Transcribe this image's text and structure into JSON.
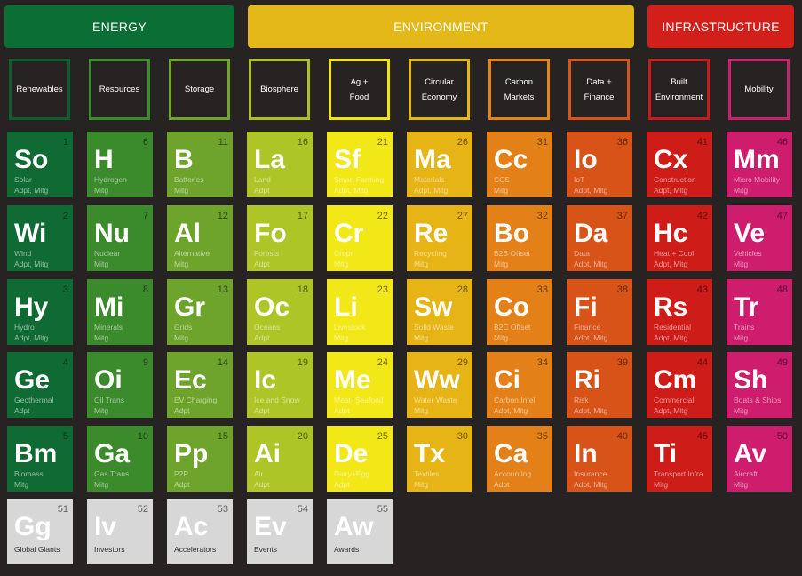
{
  "groups": [
    {
      "label": "ENERGY",
      "color": "#0a6e35"
    },
    {
      "label": "ENVIRONMENT",
      "color": "#e5b81a"
    },
    {
      "label": "INFRASTRUCTURE",
      "color": "#d31f1a"
    }
  ],
  "categories": [
    {
      "label": "Renewables",
      "border": "#0d5e2c"
    },
    {
      "label": "Resources",
      "border": "#3a8e2a"
    },
    {
      "label": "Storage",
      "border": "#6ea62b"
    },
    {
      "label": "Biosphere",
      "border": "#a9c224"
    },
    {
      "label": "Ag +\nFood",
      "border": "#f2e313"
    },
    {
      "label": "Circular\nEconomy",
      "border": "#e5b81a"
    },
    {
      "label": "Carbon\nMarkets",
      "border": "#e38318"
    },
    {
      "label": "Data +\nFinance",
      "border": "#d65518"
    },
    {
      "label": "Built\nEnvironment",
      "border": "#c81b1b"
    },
    {
      "label": "Mobility",
      "border": "#c8226c"
    }
  ],
  "column_colors": [
    "#0f6b33",
    "#3b8b2c",
    "#6ea42c",
    "#adc526",
    "#f2e817",
    "#e7b416",
    "#e38017",
    "#d85318",
    "#ce1c18",
    "#cd1d6c"
  ],
  "tiles": [
    [
      {
        "num": "1",
        "sym": "So",
        "name": "Solar",
        "tag": "Adpt, Mitg"
      },
      {
        "num": "2",
        "sym": "Wi",
        "name": "Wind",
        "tag": "Adpt, Mitg"
      },
      {
        "num": "3",
        "sym": "Hy",
        "name": "Hydro",
        "tag": "Adpt, Mitg"
      },
      {
        "num": "4",
        "sym": "Ge",
        "name": "Geothermal",
        "tag": "Adpt"
      },
      {
        "num": "5",
        "sym": "Bm",
        "name": "Biomass",
        "tag": "Mitg"
      }
    ],
    [
      {
        "num": "6",
        "sym": "H",
        "name": "Hydrogen",
        "tag": "Mitg"
      },
      {
        "num": "7",
        "sym": "Nu",
        "name": "Nuclear",
        "tag": "Mitg"
      },
      {
        "num": "8",
        "sym": "Mi",
        "name": "Minerals",
        "tag": "Mitg"
      },
      {
        "num": "9",
        "sym": "Oi",
        "name": "Oil Trans",
        "tag": "Mitg"
      },
      {
        "num": "10",
        "sym": "Ga",
        "name": "Gas Trans",
        "tag": "Mitg"
      }
    ],
    [
      {
        "num": "11",
        "sym": "B",
        "name": "Batteries",
        "tag": "Mitg"
      },
      {
        "num": "12",
        "sym": "Al",
        "name": "Alternative",
        "tag": "Mitg"
      },
      {
        "num": "13",
        "sym": "Gr",
        "name": "Grids",
        "tag": "Mitg"
      },
      {
        "num": "14",
        "sym": "Ec",
        "name": "EV Charging",
        "tag": "Adpt"
      },
      {
        "num": "15",
        "sym": "Pp",
        "name": "P2P",
        "tag": "Adpt"
      }
    ],
    [
      {
        "num": "16",
        "sym": "La",
        "name": "Land",
        "tag": "Adpt"
      },
      {
        "num": "17",
        "sym": "Fo",
        "name": "Forests",
        "tag": "Adpt"
      },
      {
        "num": "18",
        "sym": "Oc",
        "name": "Oceans",
        "tag": "Adpt"
      },
      {
        "num": "19",
        "sym": "Ic",
        "name": "Ice and Snow",
        "tag": "Adpt"
      },
      {
        "num": "20",
        "sym": "Ai",
        "name": "Air",
        "tag": "Adpt"
      }
    ],
    [
      {
        "num": "21",
        "sym": "Sf",
        "name": "Smart Farming",
        "tag": "Adpt, Mitg"
      },
      {
        "num": "22",
        "sym": "Cr",
        "name": "Crops",
        "tag": "Mitg"
      },
      {
        "num": "23",
        "sym": "Li",
        "name": "Livestock",
        "tag": "Mitg"
      },
      {
        "num": "24",
        "sym": "Me",
        "name": "Meat+Seafood",
        "tag": "Adpt"
      },
      {
        "num": "25",
        "sym": "De",
        "name": "Dairy+Egg",
        "tag": "Adpt"
      }
    ],
    [
      {
        "num": "26",
        "sym": "Ma",
        "name": "Materials",
        "tag": "Adpt, Mitg"
      },
      {
        "num": "27",
        "sym": "Re",
        "name": "Recycling",
        "tag": "Mitg"
      },
      {
        "num": "28",
        "sym": "Sw",
        "name": "Solid Waste",
        "tag": "Mitg"
      },
      {
        "num": "29",
        "sym": "Ww",
        "name": "Water Waste",
        "tag": "Mitg"
      },
      {
        "num": "30",
        "sym": "Tx",
        "name": "Textiles",
        "tag": "Mitg"
      }
    ],
    [
      {
        "num": "31",
        "sym": "Cc",
        "name": "CCS",
        "tag": "Mitg"
      },
      {
        "num": "32",
        "sym": "Bo",
        "name": "B2B Offset",
        "tag": "Mitg"
      },
      {
        "num": "33",
        "sym": "Co",
        "name": "B2C Offset",
        "tag": "Mitg"
      },
      {
        "num": "34",
        "sym": "Ci",
        "name": "Carbon Intel",
        "tag": "Adpt, Mitg"
      },
      {
        "num": "35",
        "sym": "Ca",
        "name": "Accounting",
        "tag": "Adpt"
      }
    ],
    [
      {
        "num": "36",
        "sym": "Io",
        "name": "IoT",
        "tag": "Adpt, Mitg"
      },
      {
        "num": "37",
        "sym": "Da",
        "name": "Data",
        "tag": "Adpt, Mitg"
      },
      {
        "num": "38",
        "sym": "Fi",
        "name": "Finance",
        "tag": "Adpt, Mitg"
      },
      {
        "num": "39",
        "sym": "Ri",
        "name": "Risk",
        "tag": "Adpt, Mitg"
      },
      {
        "num": "40",
        "sym": "In",
        "name": "Insurance",
        "tag": "Adpt, Mitg"
      }
    ],
    [
      {
        "num": "41",
        "sym": "Cx",
        "name": "Construction",
        "tag": "Adpt, Mitg"
      },
      {
        "num": "42",
        "sym": "Hc",
        "name": "Heat + Cool",
        "tag": "Adpt, Mitg"
      },
      {
        "num": "43",
        "sym": "Rs",
        "name": "Residential",
        "tag": "Adpt, Mitg"
      },
      {
        "num": "44",
        "sym": "Cm",
        "name": "Commercial",
        "tag": "Adpt, Mitg"
      },
      {
        "num": "45",
        "sym": "Ti",
        "name": "Transport Infra",
        "tag": "Mitg"
      }
    ],
    [
      {
        "num": "46",
        "sym": "Mm",
        "name": "Micro Mobility",
        "tag": "Mitg"
      },
      {
        "num": "47",
        "sym": "Ve",
        "name": "Vehicles",
        "tag": "Mitg"
      },
      {
        "num": "48",
        "sym": "Tr",
        "name": "Trains",
        "tag": "Mitg"
      },
      {
        "num": "49",
        "sym": "Sh",
        "name": "Boats & Ships",
        "tag": "Mitg"
      },
      {
        "num": "50",
        "sym": "Av",
        "name": "Aircraft",
        "tag": "Mitg"
      }
    ]
  ],
  "extras": [
    {
      "num": "51",
      "sym": "Gg",
      "name": "Global Giants"
    },
    {
      "num": "52",
      "sym": "Iv",
      "name": "Investors"
    },
    {
      "num": "53",
      "sym": "Ac",
      "name": "Accelerators"
    },
    {
      "num": "54",
      "sym": "Ev",
      "name": "Events"
    },
    {
      "num": "55",
      "sym": "Aw",
      "name": "Awards"
    }
  ]
}
